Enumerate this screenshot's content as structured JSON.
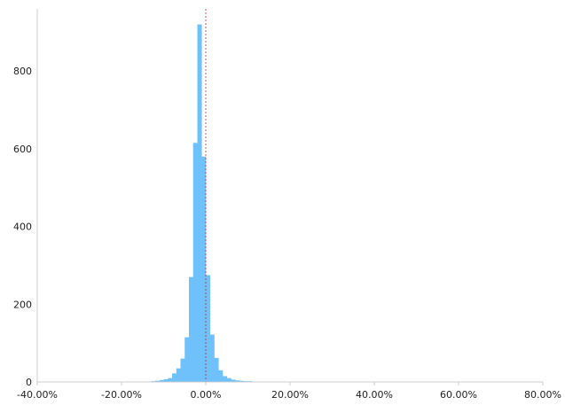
{
  "chart_data": {
    "type": "bar",
    "subtype": "histogram",
    "title": "",
    "xlabel": "",
    "ylabel": "",
    "xlim": [
      -40,
      80
    ],
    "ylim": [
      0,
      960
    ],
    "x_ticks": [
      -40,
      -20,
      0,
      20,
      40,
      60,
      80
    ],
    "x_tick_labels": [
      "-40.00%",
      "-20.00%",
      "0.00%",
      "20.00%",
      "40.00%",
      "60.00%",
      "80.00%"
    ],
    "y_ticks": [
      0,
      200,
      400,
      600,
      800
    ],
    "y_tick_labels": [
      "0",
      "200",
      "400",
      "600",
      "800"
    ],
    "grid": false,
    "legend": "none",
    "bar_color": "#6ec1fb",
    "reference_line": {
      "x": 0,
      "color": "#d12a2a",
      "style": "dashed"
    },
    "bin_width": 1,
    "bins": [
      {
        "x": -13,
        "value": 2
      },
      {
        "x": -12,
        "value": 3
      },
      {
        "x": -11,
        "value": 5
      },
      {
        "x": -10,
        "value": 7
      },
      {
        "x": -9,
        "value": 10
      },
      {
        "x": -8,
        "value": 22
      },
      {
        "x": -7,
        "value": 35
      },
      {
        "x": -6,
        "value": 60
      },
      {
        "x": -5,
        "value": 115
      },
      {
        "x": -4,
        "value": 270
      },
      {
        "x": -3,
        "value": 615
      },
      {
        "x": -2,
        "value": 920
      },
      {
        "x": -1,
        "value": 580
      },
      {
        "x": 0,
        "value": 275
      },
      {
        "x": 1,
        "value": 122
      },
      {
        "x": 2,
        "value": 62
      },
      {
        "x": 3,
        "value": 30
      },
      {
        "x": 4,
        "value": 15
      },
      {
        "x": 5,
        "value": 10
      },
      {
        "x": 6,
        "value": 6
      },
      {
        "x": 7,
        "value": 4
      },
      {
        "x": 8,
        "value": 3
      },
      {
        "x": 9,
        "value": 2
      },
      {
        "x": 10,
        "value": 2
      },
      {
        "x": 11,
        "value": 1
      },
      {
        "x": 12,
        "value": 1
      },
      {
        "x": 13,
        "value": 1
      },
      {
        "x": 15,
        "value": 1
      },
      {
        "x": 17,
        "value": 1
      }
    ]
  }
}
